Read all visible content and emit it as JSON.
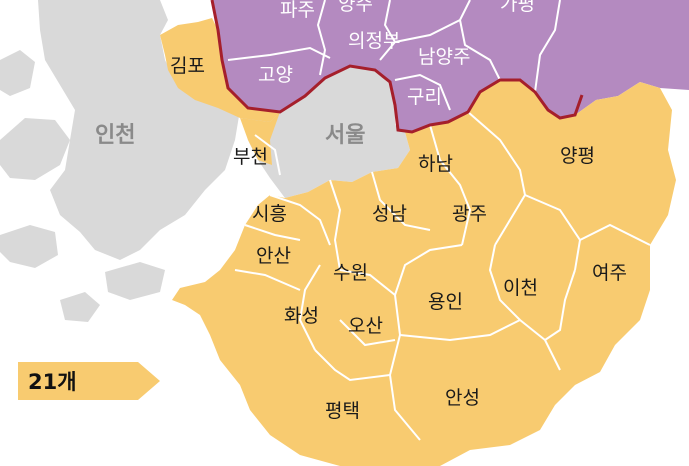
{
  "colors": {
    "background": "#ffffff",
    "other_land": "#d9d9d9",
    "highlight_yellow": "#f8cb70",
    "purple": "#b48ac0",
    "boundary_red": "#a51f2b",
    "district_line": "#ffffff"
  },
  "labels": {
    "paju": "파주",
    "yangju": "양주",
    "uijeongbu": "의정부",
    "namyangju": "남양주",
    "gapyeong": "가평",
    "goyang": "고양",
    "guri": "구리",
    "gimpo": "김포",
    "incheon": "인천",
    "seoul": "서울",
    "bucheon": "부천",
    "hanam": "하남",
    "yangpyeong": "양평",
    "siheung": "시흥",
    "seongnam": "성남",
    "gwangju": "광주",
    "ansan": "안산",
    "suwon": "수원",
    "icheon": "이천",
    "yeoju": "여주",
    "hwaseong": "화성",
    "osan": "오산",
    "yongin": "용인",
    "pyeongtaek": "평택",
    "anseong": "안성"
  },
  "legend": {
    "label": "21개"
  }
}
